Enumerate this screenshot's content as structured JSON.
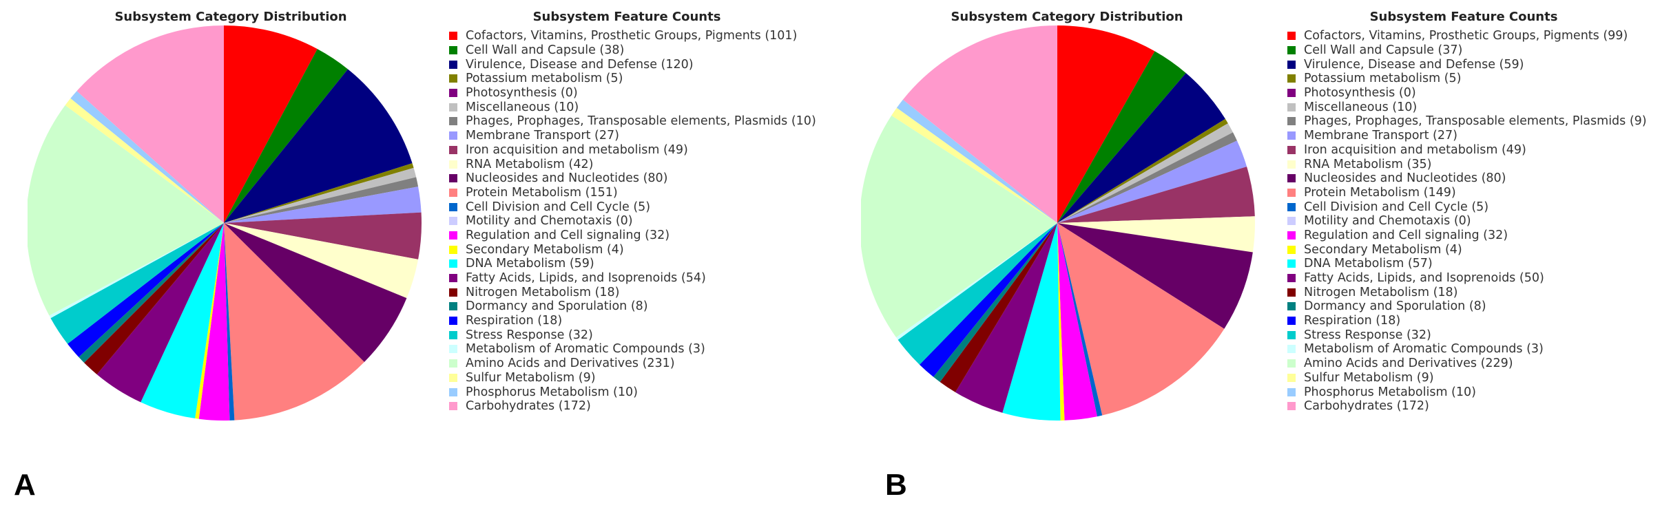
{
  "colors": [
    "#ff0000",
    "#008000",
    "#000080",
    "#808000",
    "#800080",
    "#c0c0c0",
    "#808080",
    "#9999ff",
    "#993366",
    "#ffffcc",
    "#660066",
    "#ff8080",
    "#0066cc",
    "#ccccff",
    "#ff00ff",
    "#ffff00",
    "#00ffff",
    "#800080",
    "#800000",
    "#008080",
    "#0000ff",
    "#00cccc",
    "#ccffff",
    "#ccffcc",
    "#ffff99",
    "#99ccff",
    "#ff99cc"
  ],
  "panels": [
    {
      "letter": "A",
      "pie_title": "Subsystem Category Distribution",
      "legend_title": "Subsystem Feature Counts",
      "items": [
        "Cofactors, Vitamins, Prosthetic Groups, Pigments (101)",
        "Cell Wall and Capsule (38)",
        "Virulence, Disease and Defense (120)",
        "Potassium metabolism (5)",
        "Photosynthesis (0)",
        "Miscellaneous (10)",
        "Phages, Prophages, Transposable elements, Plasmids (10)",
        "Membrane Transport (27)",
        "Iron acquisition and metabolism (49)",
        "RNA Metabolism (42)",
        "Nucleosides and Nucleotides (80)",
        "Protein Metabolism (151)",
        "Cell Division and Cell Cycle (5)",
        "Motility and Chemotaxis (0)",
        "Regulation and Cell signaling (32)",
        "Secondary Metabolism (4)",
        "DNA Metabolism (59)",
        "Fatty Acids, Lipids, and Isoprenoids (54)",
        "Nitrogen Metabolism (18)",
        "Dormancy and Sporulation (8)",
        "Respiration (18)",
        "Stress Response (32)",
        "Metabolism of Aromatic Compounds (3)",
        "Amino Acids and Derivatives (231)",
        "Sulfur Metabolism (9)",
        "Phosphorus Metabolism (10)",
        "Carbohydrates (172)"
      ]
    },
    {
      "letter": "B",
      "pie_title": "Subsystem Category Distribution",
      "legend_title": "Subsystem Feature Counts",
      "items": [
        "Cofactors, Vitamins, Prosthetic Groups, Pigments (99)",
        "Cell Wall and Capsule (37)",
        "Virulence, Disease and Defense (59)",
        "Potassium metabolism (5)",
        "Photosynthesis (0)",
        "Miscellaneous (10)",
        "Phages, Prophages, Transposable elements, Plasmids (9)",
        "Membrane Transport (27)",
        "Iron acquisition and metabolism (49)",
        "RNA Metabolism (35)",
        "Nucleosides and Nucleotides (80)",
        "Protein Metabolism (149)",
        "Cell Division and Cell Cycle (5)",
        "Motility and Chemotaxis (0)",
        "Regulation and Cell signaling (32)",
        "Secondary Metabolism (4)",
        "DNA Metabolism (57)",
        "Fatty Acids, Lipids, and Isoprenoids (50)",
        "Nitrogen Metabolism (18)",
        "Dormancy and Sporulation (8)",
        "Respiration (18)",
        "Stress Response (32)",
        "Metabolism of Aromatic Compounds (3)",
        "Amino Acids and Derivatives (229)",
        "Sulfur Metabolism (9)",
        "Phosphorus Metabolism (10)",
        "Carbohydrates (172)"
      ]
    }
  ],
  "chart_data": [
    {
      "type": "pie",
      "title": "Subsystem Category Distribution",
      "legend_title": "Subsystem Feature Counts",
      "legend_position": "right",
      "categories": [
        "Cofactors, Vitamins, Prosthetic Groups, Pigments",
        "Cell Wall and Capsule",
        "Virulence, Disease and Defense",
        "Potassium metabolism",
        "Photosynthesis",
        "Miscellaneous",
        "Phages, Prophages, Transposable elements, Plasmids",
        "Membrane Transport",
        "Iron acquisition and metabolism",
        "RNA Metabolism",
        "Nucleosides and Nucleotides",
        "Protein Metabolism",
        "Cell Division and Cell Cycle",
        "Motility and Chemotaxis",
        "Regulation and Cell signaling",
        "Secondary Metabolism",
        "DNA Metabolism",
        "Fatty Acids, Lipids, and Isoprenoids",
        "Nitrogen Metabolism",
        "Dormancy and Sporulation",
        "Respiration",
        "Stress Response",
        "Metabolism of Aromatic Compounds",
        "Amino Acids and Derivatives",
        "Sulfur Metabolism",
        "Phosphorus Metabolism",
        "Carbohydrates"
      ],
      "values": [
        101,
        38,
        120,
        5,
        0,
        10,
        10,
        27,
        49,
        42,
        80,
        151,
        5,
        0,
        32,
        4,
        59,
        54,
        18,
        8,
        18,
        32,
        3,
        231,
        9,
        10,
        172
      ]
    },
    {
      "type": "pie",
      "title": "Subsystem Category Distribution",
      "legend_title": "Subsystem Feature Counts",
      "legend_position": "right",
      "categories": [
        "Cofactors, Vitamins, Prosthetic Groups, Pigments",
        "Cell Wall and Capsule",
        "Virulence, Disease and Defense",
        "Potassium metabolism",
        "Photosynthesis",
        "Miscellaneous",
        "Phages, Prophages, Transposable elements, Plasmids",
        "Membrane Transport",
        "Iron acquisition and metabolism",
        "RNA Metabolism",
        "Nucleosides and Nucleotides",
        "Protein Metabolism",
        "Cell Division and Cell Cycle",
        "Motility and Chemotaxis",
        "Regulation and Cell signaling",
        "Secondary Metabolism",
        "DNA Metabolism",
        "Fatty Acids, Lipids, and Isoprenoids",
        "Nitrogen Metabolism",
        "Dormancy and Sporulation",
        "Respiration",
        "Stress Response",
        "Metabolism of Aromatic Compounds",
        "Amino Acids and Derivatives",
        "Sulfur Metabolism",
        "Phosphorus Metabolism",
        "Carbohydrates"
      ],
      "values": [
        99,
        37,
        59,
        5,
        0,
        10,
        9,
        27,
        49,
        35,
        80,
        149,
        5,
        0,
        32,
        4,
        57,
        50,
        18,
        8,
        18,
        32,
        3,
        229,
        9,
        10,
        172
      ]
    }
  ]
}
